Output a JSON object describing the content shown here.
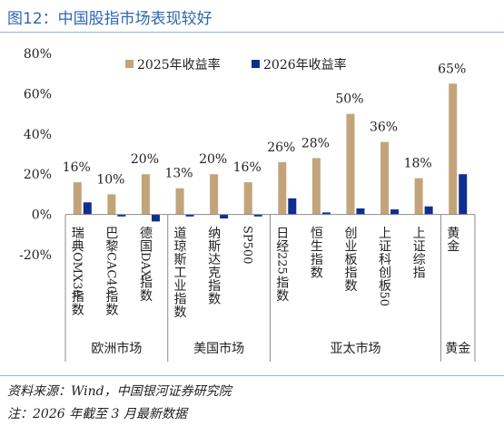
{
  "figure_title": "图12：中国股指市场表现较好",
  "source_note": "资料来源：Wind，中国银河证券研究院",
  "footnote": "注：2026 年截至 3 月最新数据",
  "colors": {
    "series_2025": "#c3a47a",
    "series_2026": "#0f2f8f",
    "title": "#2e67b1"
  },
  "chart_data": {
    "type": "bar",
    "categories": [
      "瑞典OMX30指数",
      "巴黎CAC40指数",
      "德国DAX指数",
      "道琼斯工业指数",
      "纳斯达克指数",
      "SP500",
      "日经225指数",
      "恒生指数",
      "创业板指数",
      "上证科创板50",
      "上证综指",
      "黄金"
    ],
    "groups": [
      {
        "label": "欧洲市场",
        "members": 3
      },
      {
        "label": "美国市场",
        "members": 3
      },
      {
        "label": "亚太市场",
        "members": 5
      },
      {
        "label": "黄金",
        "members": 1
      }
    ],
    "series": [
      {
        "name": "2025年收益率",
        "values": [
          16,
          10,
          20,
          13,
          20,
          16,
          26,
          28,
          50,
          36,
          18,
          65
        ]
      },
      {
        "name": "2026年收益率",
        "values": [
          6,
          -1,
          -3.5,
          -1,
          -2,
          -1,
          8,
          1,
          3,
          2.5,
          4,
          20
        ]
      }
    ],
    "data_labels": [
      "16%",
      "10%",
      "20%",
      "13%",
      "20%",
      "16%",
      "26%",
      "28%",
      "50%",
      "36%",
      "18%",
      "65%"
    ],
    "y_ticks": [
      "80%",
      "60%",
      "40%",
      "20%",
      "0%",
      "-20%"
    ],
    "y_tick_values": [
      80,
      60,
      40,
      20,
      0,
      -20
    ],
    "ylim": [
      -20,
      80
    ],
    "legend_position": "top",
    "grid": false
  }
}
